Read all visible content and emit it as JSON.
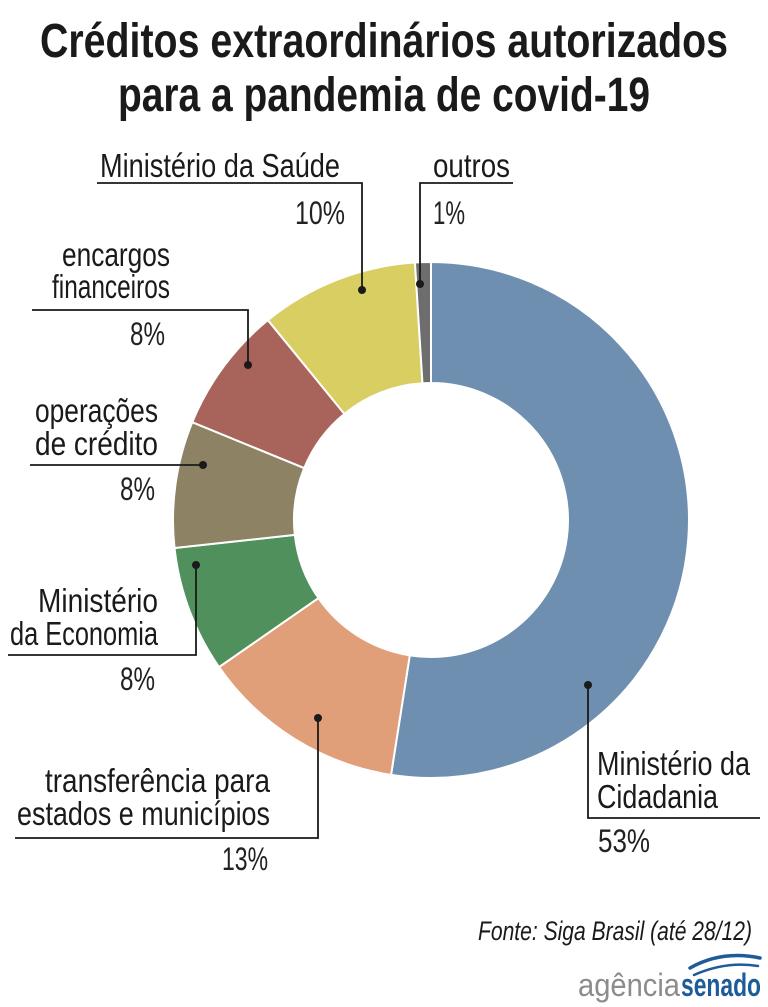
{
  "chart_data": {
    "type": "pie",
    "title_lines": [
      "Créditos extraordinários autorizados",
      "para a pandemia de covid-19"
    ],
    "slices": [
      {
        "label_lines": [
          "Ministério da",
          "Cidadania"
        ],
        "value": 53,
        "value_label": "53%",
        "color": "#6f8fb0"
      },
      {
        "label_lines": [
          "transferência para",
          "estados e municípios"
        ],
        "value": 13,
        "value_label": "13%",
        "color": "#e09f79"
      },
      {
        "label_lines": [
          "Ministério",
          "da Economia"
        ],
        "value": 8,
        "value_label": "8%",
        "color": "#50905d"
      },
      {
        "label_lines": [
          "operações",
          "de crédito"
        ],
        "value": 8,
        "value_label": "8%",
        "color": "#8d8263"
      },
      {
        "label_lines": [
          "encargos",
          "financeiros"
        ],
        "value": 8,
        "value_label": "8%",
        "color": "#a8645b"
      },
      {
        "label_lines": [
          "Ministério da Saúde"
        ],
        "value": 10,
        "value_label": "10%",
        "color": "#d8ce62"
      },
      {
        "label_lines": [
          "outros"
        ],
        "value": 1,
        "value_label": "1%",
        "color": "#6d6d6d"
      }
    ]
  },
  "source": "Fonte: Siga Brasil (até 28/12)",
  "logo": {
    "text_light": "agência",
    "text_bold": "senado"
  },
  "colors": {
    "logo_gray": "#8c8c8c",
    "logo_blue": "#1d5c99"
  }
}
